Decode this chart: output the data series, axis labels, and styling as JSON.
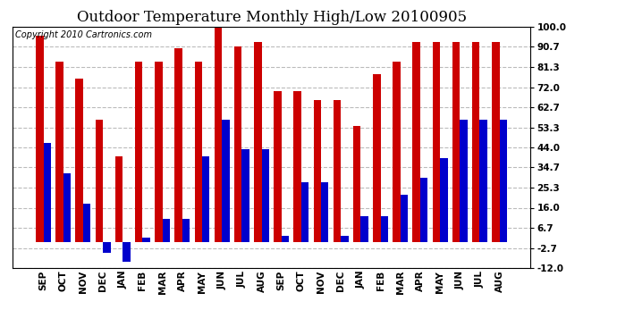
{
  "title": "Outdoor Temperature Monthly High/Low 20100905",
  "copyright": "Copyright 2010 Cartronics.com",
  "categories": [
    "SEP",
    "OCT",
    "NOV",
    "DEC",
    "JAN",
    "FEB",
    "MAR",
    "APR",
    "MAY",
    "JUN",
    "JUL",
    "AUG",
    "SEP",
    "OCT",
    "NOV",
    "DEC",
    "JAN",
    "FEB",
    "MAR",
    "APR",
    "MAY",
    "JUN",
    "JUL",
    "AUG"
  ],
  "highs": [
    96,
    84,
    76,
    57,
    40,
    84,
    84,
    90,
    84,
    100,
    91,
    93,
    70,
    70,
    66,
    66,
    54,
    78,
    84,
    93,
    93,
    93,
    93,
    93
  ],
  "lows": [
    46,
    32,
    18,
    -5,
    -9,
    2,
    11,
    11,
    40,
    57,
    43,
    43,
    3,
    28,
    28,
    3,
    12,
    12,
    22,
    30,
    39,
    57,
    57,
    57
  ],
  "ylim": [
    -12.0,
    100.0
  ],
  "yticks": [
    100.0,
    90.7,
    81.3,
    72.0,
    62.7,
    53.3,
    44.0,
    34.7,
    25.3,
    16.0,
    6.7,
    -2.7,
    -12.0
  ],
  "bar_color_high": "#cc0000",
  "bar_color_low": "#0000cc",
  "background_color": "#ffffff",
  "grid_color": "#bbbbbb",
  "title_fontsize": 12,
  "copyright_fontsize": 7
}
